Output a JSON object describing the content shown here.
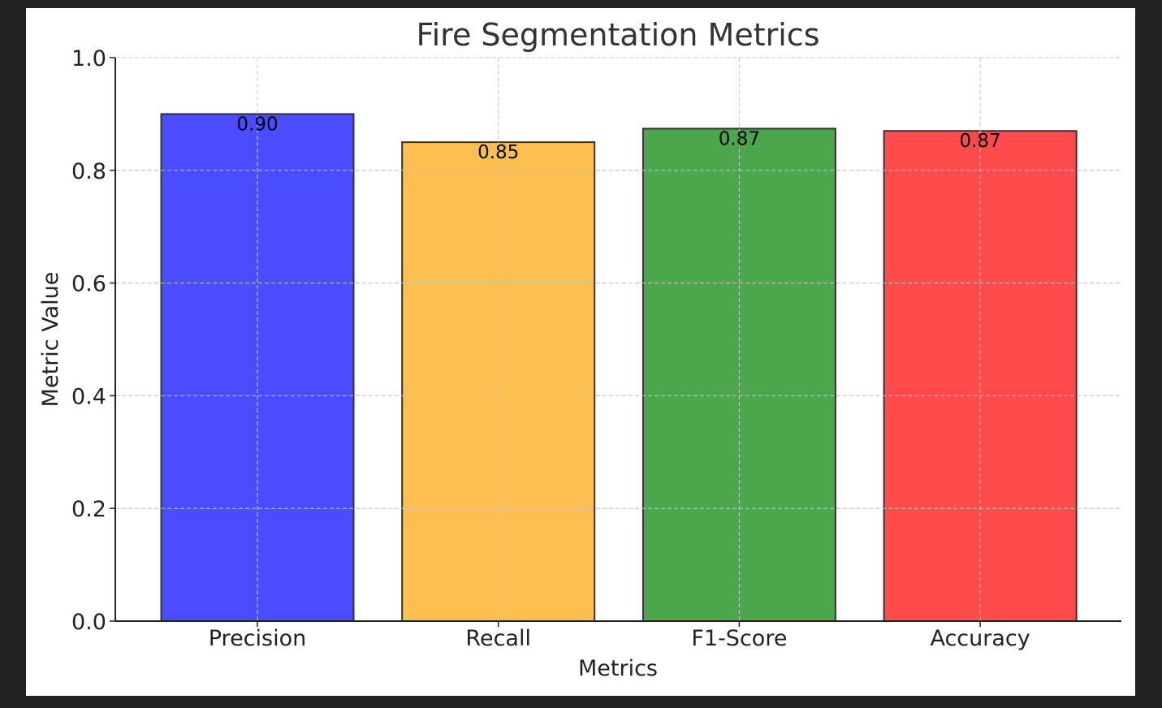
{
  "chart_data": {
    "type": "bar",
    "title": "Fire Segmentation Metrics",
    "xlabel": "Metrics",
    "ylabel": "Metric Value",
    "categories": [
      "Precision",
      "Recall",
      "F1-Score",
      "Accuracy"
    ],
    "values": [
      0.9,
      0.85,
      0.874,
      0.87
    ],
    "data_labels": [
      "0.90",
      "0.85",
      "0.87",
      "0.87"
    ],
    "colors": [
      "#4b4bff",
      "#fdbf50",
      "#4ca64c",
      "#ff4b4b"
    ],
    "edge_color": "#333333",
    "ylim": [
      0,
      1.0
    ],
    "yticks": [
      0.0,
      0.2,
      0.4,
      0.6,
      0.8,
      1.0
    ],
    "ytick_labels": [
      "0.0",
      "0.2",
      "0.4",
      "0.6",
      "0.8",
      "1.0"
    ],
    "grid": true,
    "background": "#212121"
  }
}
